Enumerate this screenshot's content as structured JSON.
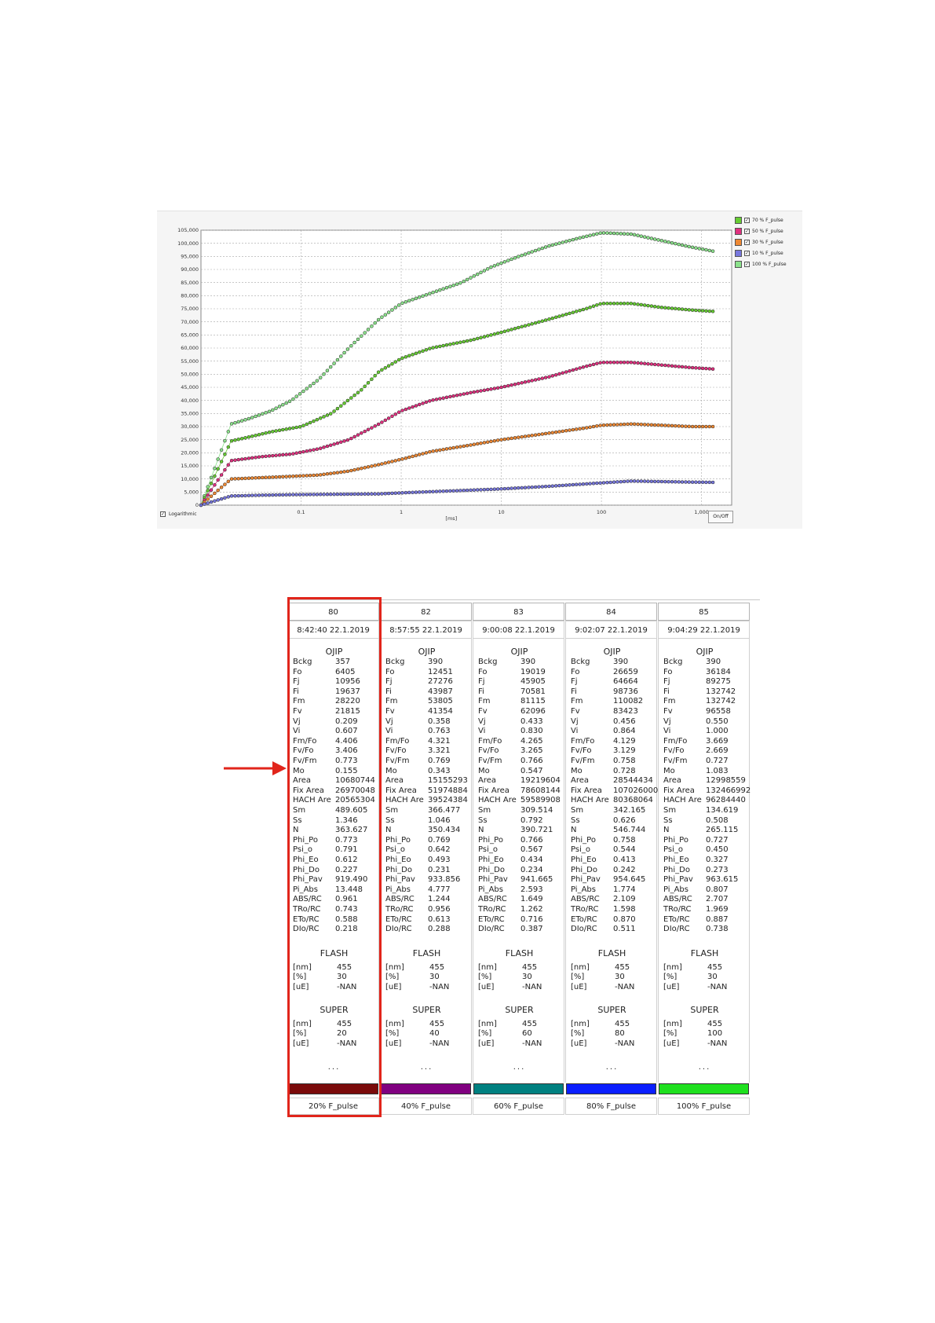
{
  "chart_data": {
    "type": "scatter",
    "title": "",
    "xlabel": "[ms]",
    "ylabel": "",
    "xscale": "log",
    "xlim": [
      0.01,
      2000
    ],
    "ylim": [
      0,
      105000
    ],
    "grid": true,
    "legend_position": "right",
    "x_ticks": [
      0.1,
      1,
      10,
      100,
      1000
    ],
    "x_tick_labels": [
      "0.1",
      "1",
      "10",
      "100",
      "1,000"
    ],
    "y_ticks": [
      0,
      5000,
      10000,
      15000,
      20000,
      25000,
      30000,
      35000,
      40000,
      45000,
      50000,
      55000,
      60000,
      65000,
      70000,
      75000,
      80000,
      85000,
      90000,
      95000,
      100000,
      105000
    ],
    "y_tick_labels": [
      "0",
      "5,000",
      "10,000",
      "15,000",
      "20,000",
      "25,000",
      "30,000",
      "35,000",
      "40,000",
      "45,000",
      "50,000",
      "55,000",
      "60,000",
      "65,000",
      "70,000",
      "75,000",
      "80,000",
      "85,000",
      "90,000",
      "95,000",
      "100,000",
      "105,000"
    ],
    "series": [
      {
        "name": "100 % F_pulse",
        "color": "#8be28b",
        "points": [
          [
            0.01,
            0
          ],
          [
            0.02,
            31000
          ],
          [
            0.03,
            33000
          ],
          [
            0.05,
            36000
          ],
          [
            0.08,
            40000
          ],
          [
            0.15,
            48000
          ],
          [
            0.3,
            60000
          ],
          [
            0.6,
            71000
          ],
          [
            1,
            77000
          ],
          [
            2,
            81000
          ],
          [
            4,
            85000
          ],
          [
            8,
            91000
          ],
          [
            15,
            95000
          ],
          [
            30,
            99000
          ],
          [
            60,
            102000
          ],
          [
            100,
            104000
          ],
          [
            200,
            103500
          ],
          [
            400,
            101000
          ],
          [
            800,
            98500
          ],
          [
            1300,
            97000
          ]
        ]
      },
      {
        "name": "70 % F_pulse",
        "color": "#66cc33",
        "points": [
          [
            0.01,
            0
          ],
          [
            0.02,
            24500
          ],
          [
            0.03,
            26000
          ],
          [
            0.05,
            28000
          ],
          [
            0.1,
            30000
          ],
          [
            0.2,
            35000
          ],
          [
            0.4,
            44000
          ],
          [
            0.6,
            51000
          ],
          [
            1,
            56000
          ],
          [
            2,
            60000
          ],
          [
            5,
            63000
          ],
          [
            10,
            66000
          ],
          [
            30,
            71000
          ],
          [
            70,
            75000
          ],
          [
            100,
            77000
          ],
          [
            200,
            77000
          ],
          [
            400,
            75500
          ],
          [
            800,
            74500
          ],
          [
            1300,
            74000
          ]
        ]
      },
      {
        "name": "50 % F_pulse",
        "color": "#e0307f",
        "points": [
          [
            0.01,
            0
          ],
          [
            0.02,
            17000
          ],
          [
            0.04,
            18500
          ],
          [
            0.08,
            19500
          ],
          [
            0.15,
            21500
          ],
          [
            0.3,
            25000
          ],
          [
            0.6,
            31000
          ],
          [
            1,
            36000
          ],
          [
            2,
            40000
          ],
          [
            5,
            43000
          ],
          [
            10,
            45000
          ],
          [
            30,
            49000
          ],
          [
            70,
            53000
          ],
          [
            100,
            54500
          ],
          [
            200,
            54500
          ],
          [
            400,
            53500
          ],
          [
            800,
            52500
          ],
          [
            1300,
            52000
          ]
        ]
      },
      {
        "name": "30 % F_pulse",
        "color": "#ee8833",
        "points": [
          [
            0.01,
            0
          ],
          [
            0.02,
            10000
          ],
          [
            0.04,
            10500
          ],
          [
            0.08,
            11000
          ],
          [
            0.15,
            11500
          ],
          [
            0.3,
            13000
          ],
          [
            0.6,
            15500
          ],
          [
            1,
            17500
          ],
          [
            2,
            20500
          ],
          [
            5,
            23000
          ],
          [
            10,
            25000
          ],
          [
            30,
            27500
          ],
          [
            70,
            29500
          ],
          [
            100,
            30500
          ],
          [
            200,
            31000
          ],
          [
            400,
            30500
          ],
          [
            800,
            30000
          ],
          [
            1300,
            30000
          ]
        ]
      },
      {
        "name": "10 % F_pulse",
        "color": "#7777dd",
        "points": [
          [
            0.01,
            0
          ],
          [
            0.02,
            3500
          ],
          [
            0.04,
            3800
          ],
          [
            0.08,
            4000
          ],
          [
            0.15,
            4100
          ],
          [
            0.3,
            4200
          ],
          [
            0.6,
            4300
          ],
          [
            1,
            4700
          ],
          [
            3,
            5400
          ],
          [
            10,
            6200
          ],
          [
            30,
            7200
          ],
          [
            100,
            8500
          ],
          [
            200,
            9200
          ],
          [
            400,
            9000
          ],
          [
            800,
            8800
          ],
          [
            1300,
            8700
          ]
        ]
      }
    ],
    "legend": [
      "70 % F_pulse",
      "50 % F_pulse",
      "30 % F_pulse",
      "10 % F_pulse",
      "100 % F_pulse"
    ],
    "legend_colors": [
      "#66cc33",
      "#e0307f",
      "#ee8833",
      "#7777dd",
      "#8be28b"
    ]
  },
  "controls": {
    "logarithmic_label": "Logarithmic",
    "onoff_label": "On/Off"
  },
  "table": {
    "section_ojip": "OJIP",
    "section_flash": "FLASH",
    "section_super": "SUPER",
    "ellipsis": "...",
    "param_names": [
      "Bckg",
      "Fo",
      "Fj",
      "Fi",
      "Fm",
      "Fv",
      "Vj",
      "Vi",
      "Fm/Fo",
      "Fv/Fo",
      "Fv/Fm",
      "Mo",
      "Area",
      "Fix Area",
      "HACH Are",
      "Sm",
      "Ss",
      "N",
      "Phi_Po",
      "Psi_o",
      "Phi_Eo",
      "Phi_Do",
      "Phi_Pav",
      "Pi_Abs",
      "ABS/RC",
      "TRo/RC",
      "ETo/RC",
      "DIo/RC"
    ],
    "light_names": [
      "[nm]",
      "[%]",
      "[uE]"
    ],
    "columns": [
      {
        "num": "80",
        "time": "8:42:40  22.1.2019",
        "bar_color": "#7a0a0a",
        "label": "20% F_pulse",
        "values": [
          "357",
          "6405",
          "10956",
          "19637",
          "28220",
          "21815",
          "0.209",
          "0.607",
          "4.406",
          "3.406",
          "0.773",
          "0.155",
          "10680744",
          "26970048",
          "20565304",
          "489.605",
          "1.346",
          "363.627",
          "0.773",
          "0.791",
          "0.612",
          "0.227",
          "919.490",
          "13.448",
          "0.961",
          "0.743",
          "0.588",
          "0.218"
        ],
        "flash": [
          "455",
          "30",
          "-NAN"
        ],
        "super": [
          "455",
          "20",
          "-NAN"
        ]
      },
      {
        "num": "82",
        "time": "8:57:55  22.1.2019",
        "bar_color": "#800080",
        "label": "40% F_pulse",
        "values": [
          "390",
          "12451",
          "27276",
          "43987",
          "53805",
          "41354",
          "0.358",
          "0.763",
          "4.321",
          "3.321",
          "0.769",
          "0.343",
          "15155293",
          "51974884",
          "39524384",
          "366.477",
          "1.046",
          "350.434",
          "0.769",
          "0.642",
          "0.493",
          "0.231",
          "933.856",
          "4.777",
          "1.244",
          "0.956",
          "0.613",
          "0.288"
        ],
        "flash": [
          "455",
          "30",
          "-NAN"
        ],
        "super": [
          "455",
          "40",
          "-NAN"
        ]
      },
      {
        "num": "83",
        "time": "9:00:08  22.1.2019",
        "bar_color": "#008080",
        "label": "60% F_pulse",
        "values": [
          "390",
          "19019",
          "45905",
          "70581",
          "81115",
          "62096",
          "0.433",
          "0.830",
          "4.265",
          "3.265",
          "0.766",
          "0.547",
          "19219604",
          "78608144",
          "59589908",
          "309.514",
          "0.792",
          "390.721",
          "0.766",
          "0.567",
          "0.434",
          "0.234",
          "941.665",
          "2.593",
          "1.649",
          "1.262",
          "0.716",
          "0.387"
        ],
        "flash": [
          "455",
          "30",
          "-NAN"
        ],
        "super": [
          "455",
          "60",
          "-NAN"
        ]
      },
      {
        "num": "84",
        "time": "9:02:07  22.1.2019",
        "bar_color": "#0a1eff",
        "label": "80% F_pulse",
        "values": [
          "390",
          "26659",
          "64664",
          "98736",
          "110082",
          "83423",
          "0.456",
          "0.864",
          "4.129",
          "3.129",
          "0.758",
          "0.728",
          "28544434",
          "107026000",
          "80368064",
          "342.165",
          "0.626",
          "546.744",
          "0.758",
          "0.544",
          "0.413",
          "0.242",
          "954.645",
          "1.774",
          "2.109",
          "1.598",
          "0.870",
          "0.511"
        ],
        "flash": [
          "455",
          "30",
          "-NAN"
        ],
        "super": [
          "455",
          "80",
          "-NAN"
        ]
      },
      {
        "num": "85",
        "time": "9:04:29  22.1.2019",
        "bar_color": "#1fe01f",
        "label": "100% F_pulse",
        "values": [
          "390",
          "36184",
          "89275",
          "132742",
          "132742",
          "96558",
          "0.550",
          "1.000",
          "3.669",
          "2.669",
          "0.727",
          "1.083",
          "12998559",
          "132466992",
          "96284440",
          "134.619",
          "0.508",
          "265.115",
          "0.727",
          "0.450",
          "0.327",
          "0.273",
          "963.615",
          "0.807",
          "2.707",
          "1.969",
          "0.887",
          "0.738"
        ],
        "flash": [
          "455",
          "30",
          "-NAN"
        ],
        "super": [
          "455",
          "100",
          "-NAN"
        ]
      }
    ]
  }
}
